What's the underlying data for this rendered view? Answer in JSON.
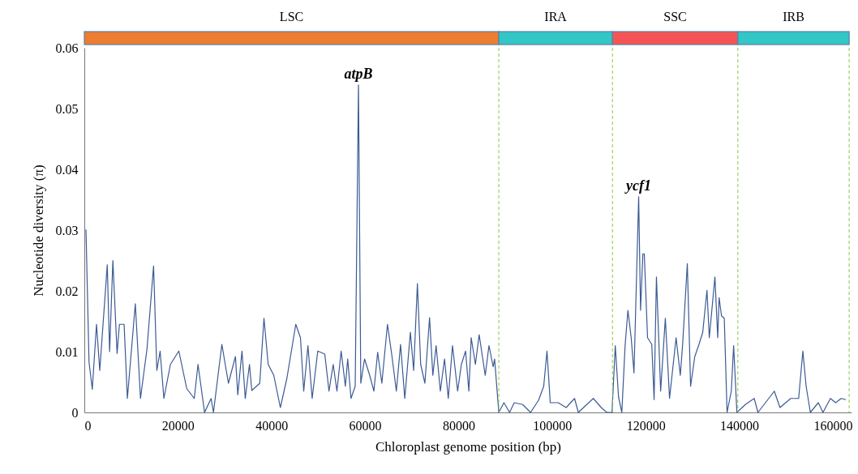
{
  "chart_data": {
    "type": "line",
    "xlabel": "Chloroplast genome position (bp)",
    "ylabel": "Nucleotide diversity (π)",
    "xlim": [
      0,
      164000
    ],
    "ylim": [
      0,
      0.06
    ],
    "xticks": [
      0,
      20000,
      40000,
      60000,
      80000,
      100000,
      120000,
      140000,
      160000
    ],
    "yticks": [
      0,
      0.01,
      0.02,
      0.03,
      0.04,
      0.05,
      0.06
    ],
    "grid": false,
    "line_style": "solid",
    "marker": "none",
    "x": [
      350,
      1000,
      1700,
      2600,
      3300,
      4900,
      5400,
      6100,
      7000,
      7500,
      8500,
      9200,
      10900,
      12000,
      13400,
      14800,
      15500,
      16200,
      17000,
      18400,
      20200,
      21900,
      23500,
      24300,
      25700,
      27100,
      27600,
      29400,
      30800,
      32300,
      32800,
      33700,
      34400,
      35300,
      35800,
      37500,
      38400,
      39300,
      40500,
      41900,
      43300,
      45200,
      46200,
      46900,
      47800,
      48700,
      49900,
      51400,
      52300,
      53200,
      54000,
      54900,
      55800,
      56300,
      57000,
      57900,
      58600,
      59100,
      59900,
      61000,
      61900,
      62700,
      63600,
      64800,
      65700,
      66700,
      67600,
      68500,
      69700,
      70400,
      71200,
      71900,
      72800,
      73800,
      74500,
      75200,
      76100,
      77000,
      77800,
      78700,
      79800,
      80600,
      81500,
      82200,
      82700,
      83600,
      84400,
      85700,
      86500,
      87400,
      87700,
      88600,
      89700,
      90900,
      91900,
      93700,
      95400,
      97100,
      98200,
      98900,
      99600,
      101300,
      103000,
      104800,
      105600,
      108800,
      110500,
      111700,
      112800,
      113500,
      114200,
      114900,
      115600,
      116200,
      116900,
      117500,
      118500,
      118900,
      119400,
      119700,
      120400,
      121300,
      121800,
      122300,
      123200,
      124200,
      125100,
      126500,
      127400,
      127900,
      128900,
      129600,
      130500,
      131400,
      132200,
      133100,
      133600,
      134800,
      135400,
      135700,
      136200,
      136800,
      137400,
      138300,
      138800,
      139500,
      141300,
      143200,
      144000,
      147500,
      148700,
      151000,
      152700,
      153600,
      154300,
      155200,
      156900,
      157900,
      159500,
      160600,
      161800,
      162800
    ],
    "series": [
      {
        "color": "#3c5a94",
        "values": [
          0.0301,
          0.0083,
          0.0038,
          0.0145,
          0.0069,
          0.0243,
          0.01,
          0.025,
          0.0097,
          0.0145,
          0.0145,
          0.0023,
          0.0179,
          0.0023,
          0.0105,
          0.0241,
          0.0069,
          0.0101,
          0.0023,
          0.0079,
          0.0101,
          0.0039,
          0.0023,
          0.0079,
          0,
          0.0023,
          0,
          0.0112,
          0.0048,
          0.0092,
          0.0029,
          0.0101,
          0.0023,
          0.0079,
          0.0036,
          0.0048,
          0.0155,
          0.0079,
          0.0061,
          0.0008,
          0.0056,
          0.0145,
          0.0123,
          0.0035,
          0.011,
          0.0023,
          0.0101,
          0.0096,
          0.0035,
          0.0079,
          0.0035,
          0.0101,
          0.0043,
          0.0088,
          0.0023,
          0.0043,
          0.0539,
          0.0048,
          0.0088,
          0.0061,
          0.0035,
          0.0099,
          0.0048,
          0.0145,
          0.0096,
          0.0035,
          0.0112,
          0.0023,
          0.0132,
          0.0069,
          0.0212,
          0.0079,
          0.0048,
          0.0156,
          0.0061,
          0.011,
          0.0035,
          0.0088,
          0.0023,
          0.011,
          0.0035,
          0.0079,
          0.0101,
          0.0035,
          0.0123,
          0.0079,
          0.0128,
          0.0061,
          0.011,
          0.0075,
          0.0088,
          0,
          0.0016,
          0,
          0.0016,
          0.0013,
          0,
          0.002,
          0.0043,
          0.0101,
          0.0016,
          0.0016,
          0.0008,
          0.0023,
          0,
          0.0023,
          0.0008,
          0,
          0,
          0.011,
          0.0025,
          0,
          0.011,
          0.0168,
          0.0123,
          0.0065,
          0.0355,
          0.0168,
          0.0261,
          0.0261,
          0.0123,
          0.0112,
          0.0021,
          0.0223,
          0.0035,
          0.0155,
          0.0023,
          0.0123,
          0.0061,
          0.0112,
          0.0245,
          0.0043,
          0.0092,
          0.0112,
          0.0132,
          0.0201,
          0.0123,
          0.0223,
          0.0123,
          0.0189,
          0.0159,
          0.0155,
          0,
          0.0035,
          0.011,
          0,
          0.0013,
          0.0023,
          0,
          0.0035,
          0.0008,
          0.0023,
          0.0023,
          0.0101,
          0.0043,
          0,
          0.0016,
          0,
          0.0023,
          0.0016,
          0.0023,
          0.0021
        ]
      }
    ],
    "annotations": [
      {
        "text": "atpB",
        "x": 58600,
        "y": 0.0539
      },
      {
        "text": "ycf1",
        "x": 118500,
        "y": 0.0355
      },
      "LSC",
      "IRA",
      "SSC",
      "IRB"
    ],
    "ref_lines": [
      {
        "axis": "x",
        "value": 88600,
        "color": "#8dc63f",
        "line_style": "dashed"
      },
      {
        "axis": "x",
        "value": 112900,
        "color": "#8dc63f",
        "line_style": "dashed"
      },
      {
        "axis": "x",
        "value": 139700,
        "color": "#8dc63f",
        "line_style": "dashed"
      },
      {
        "axis": "x",
        "value": 163500,
        "color": "#8dc63f",
        "line_style": "dashed"
      }
    ]
  }
}
